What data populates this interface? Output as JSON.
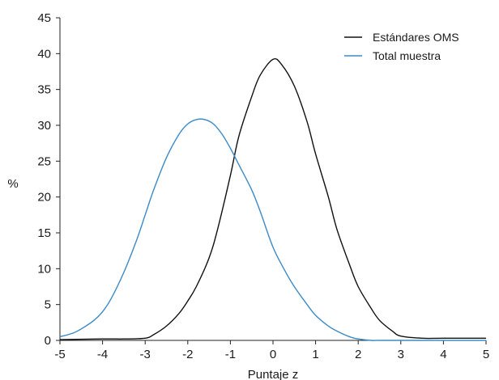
{
  "chart_data": {
    "type": "line",
    "title": "",
    "xlabel": "Puntaje z",
    "ylabel": "%",
    "xlim": [
      -5,
      5
    ],
    "ylim": [
      0,
      45
    ],
    "xticks": [
      -5,
      -4,
      -3,
      -2,
      -1,
      0,
      1,
      2,
      3,
      4,
      5
    ],
    "yticks": [
      0,
      5,
      10,
      15,
      20,
      25,
      30,
      35,
      40,
      45
    ],
    "grid": false,
    "legend_position": "top-right",
    "series": [
      {
        "name": "Estándares OMS",
        "color": "#111111",
        "x": [
          -5,
          -4,
          -3.5,
          -3,
          -2.8,
          -2.5,
          -2.2,
          -2,
          -1.8,
          -1.5,
          -1.3,
          -1,
          -0.8,
          -0.5,
          -0.3,
          0,
          0.2,
          0.5,
          0.8,
          1,
          1.3,
          1.5,
          1.8,
          2,
          2.3,
          2.5,
          2.8,
          3,
          3.5,
          4,
          5
        ],
        "y": [
          0.1,
          0.2,
          0.2,
          0.3,
          0.8,
          2.0,
          3.8,
          5.5,
          7.5,
          11.5,
          15.5,
          23.0,
          28.5,
          34.0,
          37.0,
          39.2,
          38.5,
          35.5,
          30.5,
          26.0,
          20.0,
          15.5,
          10.5,
          7.5,
          4.5,
          2.8,
          1.3,
          0.6,
          0.3,
          0.3,
          0.3
        ]
      },
      {
        "name": "Total muestra",
        "color": "#3b8ac8",
        "x": [
          -5,
          -4.7,
          -4.5,
          -4.2,
          -4,
          -3.8,
          -3.5,
          -3.2,
          -3,
          -2.8,
          -2.5,
          -2.2,
          -2,
          -1.8,
          -1.6,
          -1.4,
          -1.2,
          -1,
          -0.8,
          -0.5,
          -0.3,
          0,
          0.3,
          0.5,
          0.8,
          1,
          1.3,
          1.5,
          1.8,
          2,
          2.3,
          2.5,
          3,
          4,
          5
        ],
        "y": [
          0.5,
          1.0,
          1.6,
          2.8,
          4.0,
          5.8,
          9.5,
          14.0,
          17.5,
          21.0,
          25.5,
          28.8,
          30.2,
          30.8,
          30.8,
          30.2,
          28.8,
          26.8,
          24.5,
          21.0,
          18.0,
          13.0,
          9.5,
          7.5,
          5.0,
          3.5,
          2.0,
          1.3,
          0.5,
          0.2,
          0.0,
          0.0,
          0.0,
          0.0,
          0.0
        ]
      }
    ]
  }
}
